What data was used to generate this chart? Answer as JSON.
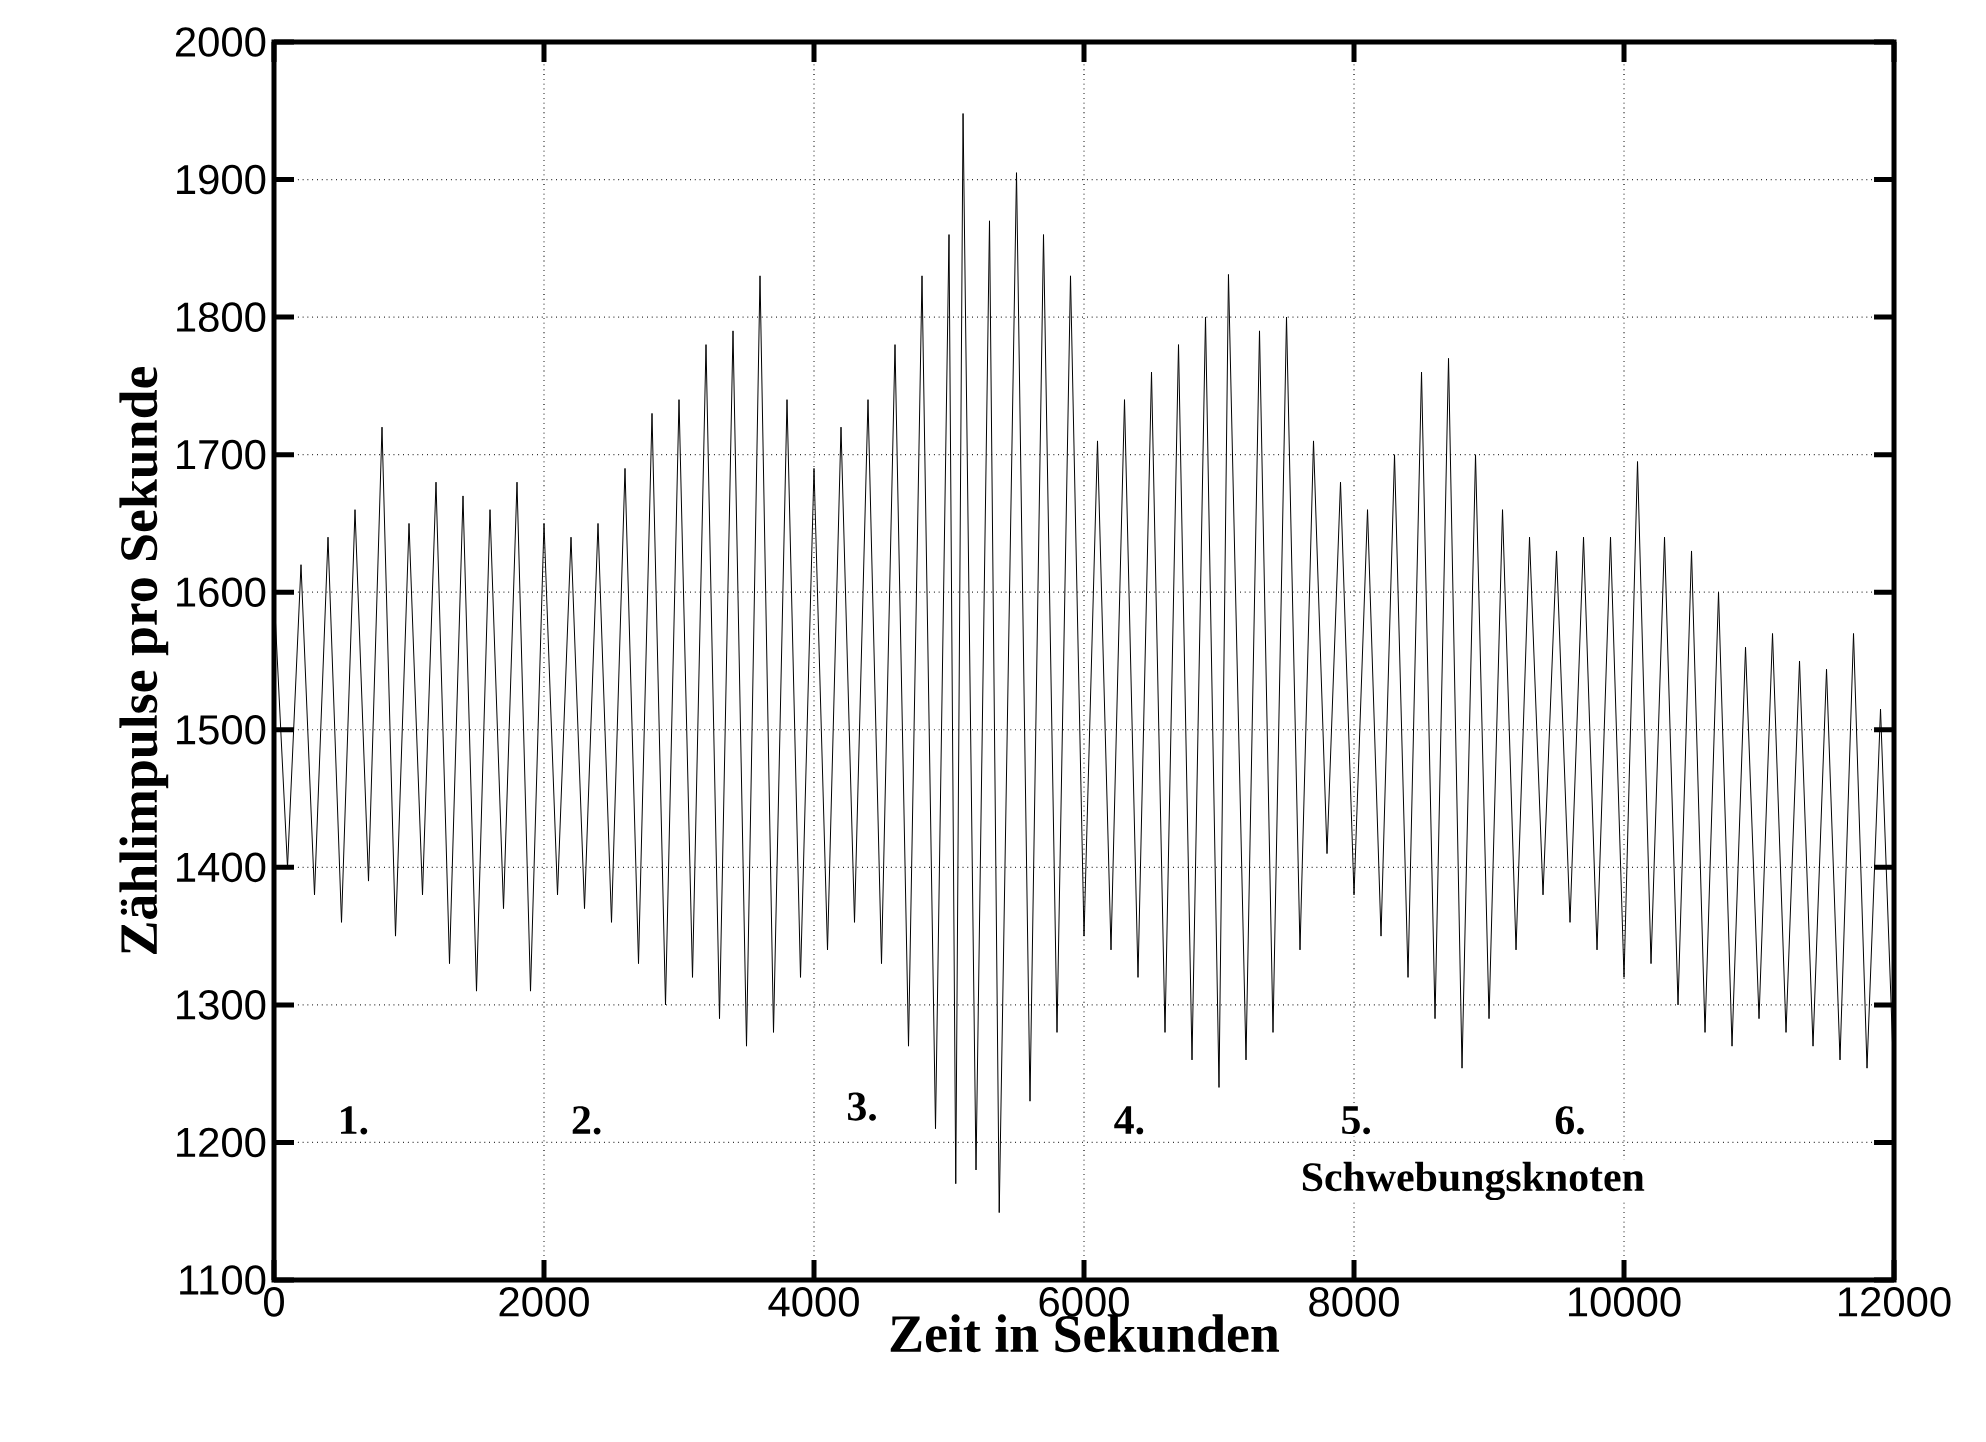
{
  "chart_data": {
    "type": "line",
    "xlabel": "Zeit in Sekunden",
    "ylabel": "Zählimpulse pro Sekunde",
    "xlim": [
      0,
      12000
    ],
    "ylim": [
      1100,
      2000
    ],
    "xticks": [
      0,
      2000,
      4000,
      6000,
      8000,
      10000,
      12000
    ],
    "yticks": [
      1100,
      1200,
      1300,
      1400,
      1500,
      1600,
      1700,
      1800,
      1900,
      2000
    ],
    "grid": true,
    "marker": "none",
    "line_style": "solid",
    "series": [
      {
        "color": "#000000",
        "x": [
          0,
          100,
          200,
          300,
          400,
          500,
          600,
          700,
          800,
          900,
          1000,
          1100,
          1200,
          1300,
          1400,
          1500,
          1600,
          1700,
          1800,
          1900,
          2000,
          2100,
          2200,
          2300,
          2400,
          2500,
          2600,
          2700,
          2800,
          2900,
          3000,
          3100,
          3200,
          3300,
          3400,
          3500,
          3600,
          3700,
          3800,
          3900,
          4000,
          4100,
          4200,
          4300,
          4400,
          4500,
          4600,
          4700,
          4800,
          4900,
          5000,
          5050,
          5104,
          5200,
          5300,
          5372,
          5500,
          5600,
          5700,
          5800,
          5900,
          6000,
          6100,
          6200,
          6300,
          6400,
          6500,
          6600,
          6700,
          6800,
          6900,
          7000,
          7070,
          7200,
          7300,
          7400,
          7500,
          7600,
          7700,
          7800,
          7900,
          8000,
          8100,
          8200,
          8300,
          8400,
          8500,
          8600,
          8700,
          8800,
          8900,
          9000,
          9100,
          9200,
          9300,
          9400,
          9500,
          9600,
          9700,
          9800,
          9900,
          10000,
          10100,
          10200,
          10300,
          10400,
          10500,
          10600,
          10700,
          10800,
          10900,
          11000,
          11100,
          11200,
          11300,
          11400,
          11500,
          11600,
          11700,
          11800,
          11900,
          12000
        ],
        "values": [
          1600,
          1400,
          1620,
          1380,
          1640,
          1360,
          1660,
          1390,
          1720,
          1350,
          1650,
          1380,
          1680,
          1330,
          1670,
          1310,
          1660,
          1370,
          1680,
          1310,
          1650,
          1380,
          1640,
          1370,
          1650,
          1360,
          1690,
          1330,
          1730,
          1300,
          1740,
          1320,
          1780,
          1290,
          1790,
          1270,
          1830,
          1280,
          1740,
          1320,
          1690,
          1340,
          1720,
          1360,
          1740,
          1330,
          1780,
          1270,
          1830,
          1210,
          1860,
          1170,
          1948,
          1180,
          1870,
          1149,
          1905,
          1230,
          1860,
          1280,
          1830,
          1350,
          1710,
          1340,
          1740,
          1320,
          1760,
          1280,
          1780,
          1260,
          1800,
          1240,
          1831,
          1260,
          1790,
          1280,
          1800,
          1340,
          1710,
          1410,
          1680,
          1380,
          1660,
          1350,
          1700,
          1320,
          1760,
          1290,
          1770,
          1254,
          1700,
          1290,
          1660,
          1340,
          1640,
          1380,
          1630,
          1360,
          1640,
          1340,
          1640,
          1320,
          1695,
          1330,
          1640,
          1300,
          1630,
          1280,
          1600,
          1270,
          1560,
          1290,
          1570,
          1280,
          1550,
          1270,
          1544,
          1260,
          1570,
          1254,
          1515,
          1242
        ]
      }
    ],
    "annotations": [
      "1.",
      "2.",
      "3.",
      "4.",
      "5.",
      "6.",
      "Schwebungsknoten"
    ]
  }
}
